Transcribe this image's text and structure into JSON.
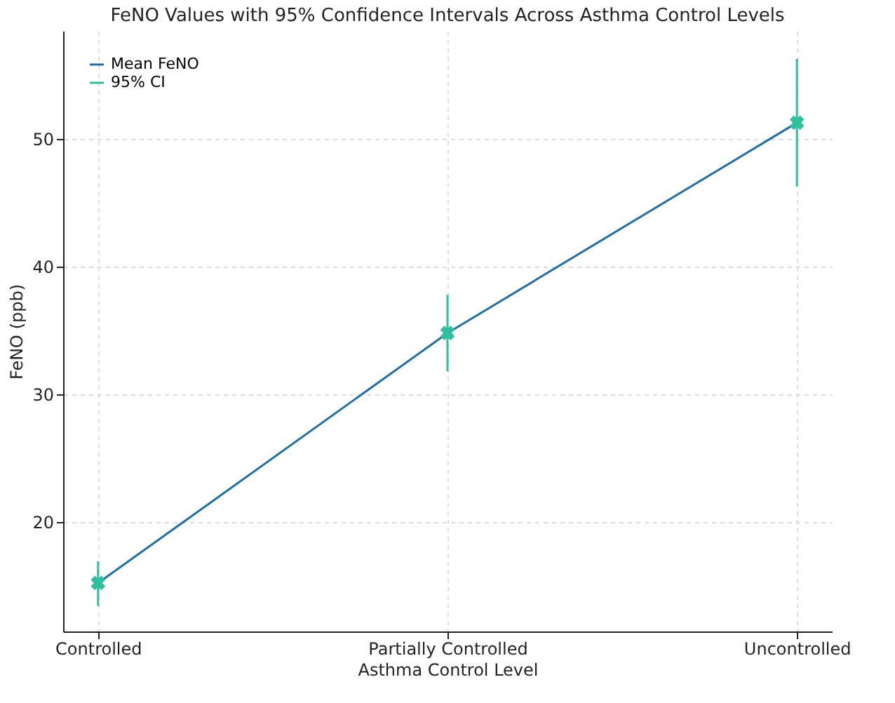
{
  "chart_data": {
    "type": "line",
    "title": "FeNO Values with 95% Confidence Intervals Across Asthma Control Levels",
    "xlabel": "Asthma Control Level",
    "ylabel": "FeNO (ppb)",
    "categories": [
      "Controlled",
      "Partially Controlled",
      "Uncontrolled"
    ],
    "series": [
      {
        "name": "Mean FeNO",
        "color": "#1f6fa8",
        "values": [
          15.2,
          34.8,
          51.3
        ]
      },
      {
        "name": "95% CI",
        "type": "scatter",
        "color": "#2fbf9f",
        "marker": "cross",
        "values": [
          15.2,
          34.8,
          51.3
        ],
        "errors": [
          [
            13.4,
            16.9
          ],
          [
            31.8,
            37.8
          ],
          [
            46.3,
            56.3
          ]
        ]
      }
    ],
    "ylim": [
      11.4,
      58.5
    ],
    "yticks": [
      20,
      30,
      40,
      50
    ],
    "grid": true,
    "legend": "top left"
  }
}
